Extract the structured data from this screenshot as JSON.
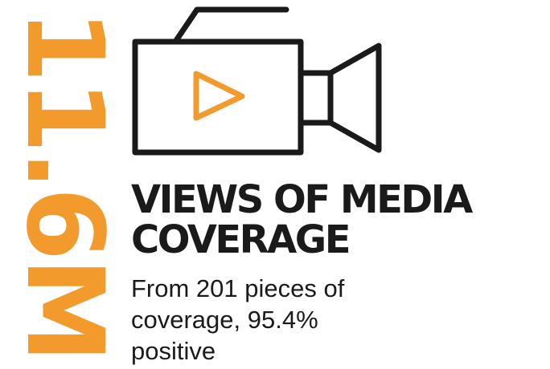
{
  "stat": {
    "value": "11.6M"
  },
  "headline": {
    "line1": "VIEWS OF MEDIA",
    "line2": "COVERAGE"
  },
  "description": "From 201 pieces of coverage, 95.4% positive",
  "icon": {
    "name": "video-camera-icon",
    "play": "play-icon"
  },
  "colors": {
    "accent": "#f39a2d",
    "text": "#1a1a1a"
  }
}
